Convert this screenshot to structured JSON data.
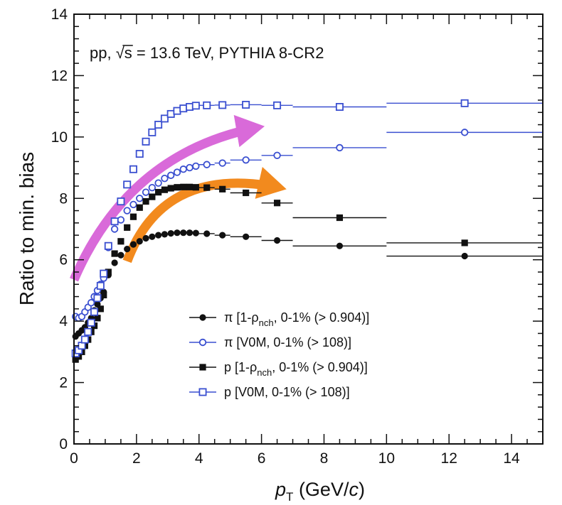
{
  "chart_data": {
    "type": "scatter",
    "annotation": {
      "part1": "pp, ",
      "sqrt": "√s",
      "part2": " = 13.6 TeV, PYTHIA 8-CR2"
    },
    "xlabel": {
      "main": "p",
      "sub": "T",
      "unit_open": " (GeV/",
      "unit_var": "c",
      "unit_close": ")"
    },
    "ylabel": "Ratio to min. bias",
    "xlim": [
      0,
      15
    ],
    "ylim": [
      0,
      14
    ],
    "xticks": [
      0,
      2,
      4,
      6,
      8,
      10,
      12,
      14
    ],
    "yticks": [
      0,
      2,
      4,
      6,
      8,
      10,
      12,
      14
    ],
    "colors": {
      "black": "#111111",
      "blue": "#3a4fd0",
      "magenta": "#d96ad9",
      "orange": "#f28a1e"
    },
    "series": [
      {
        "legend": {
          "before": "π [1-ρ",
          "sub": "nch",
          "after": ", 0-1% (> 0.904)]"
        },
        "marker": "circle-filled",
        "color": "#111111",
        "x": [
          0.05,
          0.15,
          0.25,
          0.35,
          0.45,
          0.55,
          0.65,
          0.75,
          0.85,
          0.95,
          1.1,
          1.3,
          1.5,
          1.7,
          1.9,
          2.1,
          2.3,
          2.5,
          2.7,
          2.9,
          3.1,
          3.3,
          3.5,
          3.7,
          3.9,
          4.25,
          4.75,
          5.5,
          6.5,
          8.5,
          12.5
        ],
        "y": [
          3.5,
          3.6,
          3.7,
          3.8,
          3.95,
          4.1,
          4.35,
          4.55,
          4.75,
          4.95,
          5.5,
          5.9,
          6.15,
          6.35,
          6.5,
          6.6,
          6.7,
          6.75,
          6.8,
          6.83,
          6.86,
          6.88,
          6.88,
          6.88,
          6.87,
          6.85,
          6.8,
          6.75,
          6.63,
          6.45,
          6.12
        ],
        "xerr": [
          0.05,
          0.05,
          0.05,
          0.05,
          0.05,
          0.05,
          0.05,
          0.05,
          0.05,
          0.05,
          0.1,
          0.1,
          0.1,
          0.1,
          0.1,
          0.1,
          0.1,
          0.1,
          0.1,
          0.1,
          0.1,
          0.1,
          0.1,
          0.1,
          0.1,
          0.25,
          0.25,
          0.5,
          0.5,
          1.5,
          2.5
        ]
      },
      {
        "legend": {
          "before": "π [V0M, 0-1% (> 108)]",
          "sub": "",
          "after": ""
        },
        "marker": "circle-open",
        "color": "#3a4fd0",
        "x": [
          0.05,
          0.15,
          0.25,
          0.35,
          0.45,
          0.55,
          0.65,
          0.75,
          0.85,
          0.95,
          1.1,
          1.3,
          1.5,
          1.7,
          1.9,
          2.1,
          2.3,
          2.5,
          2.7,
          2.9,
          3.1,
          3.3,
          3.5,
          3.7,
          3.9,
          4.25,
          4.75,
          5.5,
          6.5,
          8.5,
          12.5
        ],
        "y": [
          4.15,
          4.1,
          4.15,
          4.3,
          4.45,
          4.6,
          4.8,
          5.0,
          5.2,
          5.4,
          6.4,
          7.0,
          7.3,
          7.6,
          7.8,
          8.0,
          8.2,
          8.35,
          8.5,
          8.65,
          8.75,
          8.85,
          8.95,
          9.0,
          9.05,
          9.1,
          9.15,
          9.25,
          9.4,
          9.65,
          10.15
        ],
        "xerr": [
          0.05,
          0.05,
          0.05,
          0.05,
          0.05,
          0.05,
          0.05,
          0.05,
          0.05,
          0.05,
          0.1,
          0.1,
          0.1,
          0.1,
          0.1,
          0.1,
          0.1,
          0.1,
          0.1,
          0.1,
          0.1,
          0.1,
          0.1,
          0.1,
          0.1,
          0.25,
          0.25,
          0.5,
          0.5,
          1.5,
          2.5
        ]
      },
      {
        "legend": {
          "before": "p [1-ρ",
          "sub": "nch",
          "after": ", 0-1% (> 0.904)]"
        },
        "marker": "square-filled",
        "color": "#111111",
        "x": [
          0.05,
          0.15,
          0.25,
          0.35,
          0.45,
          0.55,
          0.65,
          0.75,
          0.85,
          0.95,
          1.1,
          1.3,
          1.5,
          1.7,
          1.9,
          2.1,
          2.3,
          2.5,
          2.7,
          2.9,
          3.1,
          3.3,
          3.5,
          3.7,
          3.9,
          4.25,
          4.75,
          5.5,
          6.5,
          8.5,
          12.5
        ],
        "y": [
          2.75,
          2.85,
          3.0,
          3.2,
          3.4,
          3.65,
          3.85,
          4.1,
          4.4,
          4.85,
          5.6,
          6.2,
          6.6,
          7.05,
          7.4,
          7.7,
          7.9,
          8.05,
          8.2,
          8.28,
          8.33,
          8.36,
          8.37,
          8.37,
          8.36,
          8.35,
          8.3,
          8.18,
          7.85,
          7.37,
          6.55
        ],
        "xerr": [
          0.05,
          0.05,
          0.05,
          0.05,
          0.05,
          0.05,
          0.05,
          0.05,
          0.05,
          0.05,
          0.1,
          0.1,
          0.1,
          0.1,
          0.1,
          0.1,
          0.1,
          0.1,
          0.1,
          0.1,
          0.1,
          0.1,
          0.1,
          0.1,
          0.1,
          0.25,
          0.25,
          0.5,
          0.5,
          1.5,
          2.5
        ]
      },
      {
        "legend": {
          "before": "p [V0M, 0-1% (> 108)]",
          "sub": "",
          "after": ""
        },
        "marker": "square-open",
        "color": "#3a4fd0",
        "x": [
          0.05,
          0.15,
          0.25,
          0.35,
          0.45,
          0.55,
          0.65,
          0.75,
          0.85,
          0.95,
          1.1,
          1.3,
          1.5,
          1.7,
          1.9,
          2.1,
          2.3,
          2.5,
          2.7,
          2.9,
          3.1,
          3.3,
          3.5,
          3.7,
          3.9,
          4.25,
          4.75,
          5.5,
          6.5,
          8.5,
          12.5
        ],
        "y": [
          2.95,
          3.05,
          3.2,
          3.4,
          3.65,
          3.95,
          4.3,
          4.75,
          5.15,
          5.55,
          6.45,
          7.25,
          7.9,
          8.45,
          8.95,
          9.45,
          9.85,
          10.15,
          10.4,
          10.6,
          10.75,
          10.85,
          10.93,
          10.98,
          11.02,
          11.03,
          11.04,
          11.05,
          11.03,
          10.98,
          11.1
        ],
        "xerr": [
          0.05,
          0.05,
          0.05,
          0.05,
          0.05,
          0.05,
          0.05,
          0.05,
          0.05,
          0.05,
          0.1,
          0.1,
          0.1,
          0.1,
          0.1,
          0.1,
          0.1,
          0.1,
          0.1,
          0.1,
          0.1,
          0.1,
          0.1,
          0.1,
          0.1,
          0.25,
          0.25,
          0.5,
          0.5,
          1.5,
          2.5
        ]
      }
    ],
    "arrows": [
      {
        "color": "#d96ad9",
        "from": [
          0.0,
          5.35
        ],
        "ctrl": [
          1.8,
          9.6
        ],
        "to": [
          6.1,
          10.35
        ]
      },
      {
        "color": "#f28a1e",
        "from": [
          1.7,
          5.95
        ],
        "ctrl": [
          2.9,
          9.2
        ],
        "to": [
          6.8,
          8.3
        ]
      }
    ]
  }
}
